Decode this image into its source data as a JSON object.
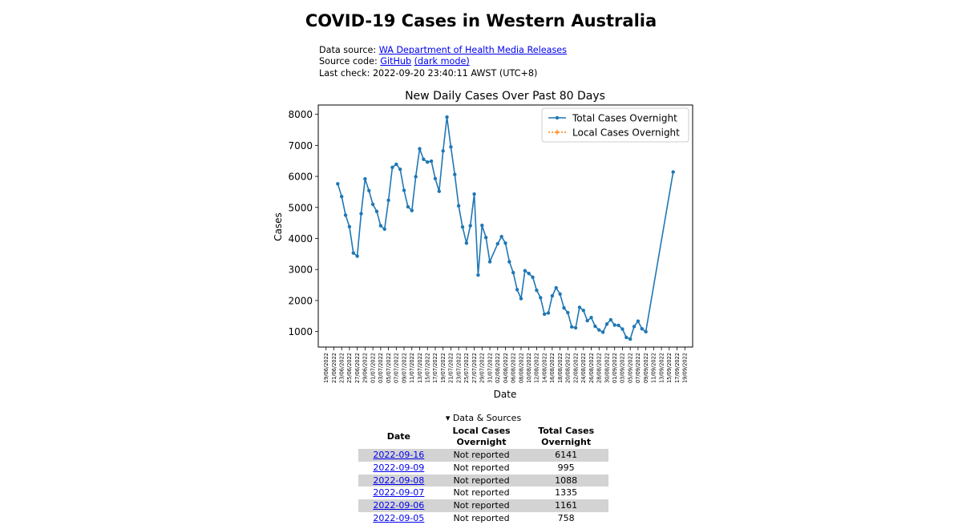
{
  "page": {
    "title": "COVID-19 Cases in Western Australia",
    "data_source_label": "Data source:",
    "data_source_link": "WA Department of Health Media Releases",
    "source_code_label": "Source code:",
    "github_link": "GitHub",
    "dark_mode_link": "(dark mode)",
    "last_check": "Last check: 2022-09-20 23:40:11 AWST (UTC+8)"
  },
  "chart_data": {
    "type": "line",
    "title": "New Daily Cases Over Past 80 Days",
    "xlabel": "Date",
    "ylabel": "Cases",
    "ylim": [
      500,
      8300
    ],
    "yticks": [
      1000,
      2000,
      3000,
      4000,
      5000,
      6000,
      7000,
      8000
    ],
    "xticks": [
      "19/06/2022",
      "21/06/2022",
      "23/06/2022",
      "25/06/2022",
      "27/06/2022",
      "29/06/2022",
      "01/07/2022",
      "03/07/2022",
      "05/07/2022",
      "07/07/2022",
      "09/07/2022",
      "11/07/2022",
      "13/07/2022",
      "15/07/2022",
      "17/07/2022",
      "19/07/2022",
      "21/07/2022",
      "23/07/2022",
      "25/07/2022",
      "27/07/2022",
      "29/07/2022",
      "31/07/2022",
      "02/08/2022",
      "04/08/2022",
      "06/08/2022",
      "08/08/2022",
      "10/08/2022",
      "12/08/2022",
      "14/08/2022",
      "16/08/2022",
      "18/08/2022",
      "20/08/2022",
      "22/08/2022",
      "24/08/2022",
      "26/08/2022",
      "28/08/2022",
      "30/08/2022",
      "01/09/2022",
      "03/09/2022",
      "05/09/2022",
      "07/09/2022",
      "09/09/2022",
      "11/09/2022",
      "13/09/2022",
      "15/09/2022",
      "17/09/2022",
      "19/09/2022"
    ],
    "legend_position": "top-right",
    "grid": false,
    "series": [
      {
        "name": "Total Cases Overnight",
        "color": "#1f77b4",
        "marker": "dot",
        "x": [
          "2022-06-22",
          "2022-06-23",
          "2022-06-24",
          "2022-06-25",
          "2022-06-26",
          "2022-06-27",
          "2022-06-28",
          "2022-06-29",
          "2022-06-30",
          "2022-07-01",
          "2022-07-02",
          "2022-07-03",
          "2022-07-04",
          "2022-07-05",
          "2022-07-06",
          "2022-07-07",
          "2022-07-08",
          "2022-07-09",
          "2022-07-10",
          "2022-07-11",
          "2022-07-12",
          "2022-07-13",
          "2022-07-14",
          "2022-07-15",
          "2022-07-16",
          "2022-07-17",
          "2022-07-18",
          "2022-07-19",
          "2022-07-20",
          "2022-07-21",
          "2022-07-22",
          "2022-07-23",
          "2022-07-24",
          "2022-07-25",
          "2022-07-26",
          "2022-07-27",
          "2022-07-28",
          "2022-07-29",
          "2022-07-30",
          "2022-07-31",
          "2022-08-02",
          "2022-08-03",
          "2022-08-04",
          "2022-08-05",
          "2022-08-06",
          "2022-08-07",
          "2022-08-08",
          "2022-08-09",
          "2022-08-10",
          "2022-08-11",
          "2022-08-12",
          "2022-08-13",
          "2022-08-14",
          "2022-08-15",
          "2022-08-16",
          "2022-08-17",
          "2022-08-18",
          "2022-08-19",
          "2022-08-20",
          "2022-08-21",
          "2022-08-22",
          "2022-08-23",
          "2022-08-24",
          "2022-08-25",
          "2022-08-26",
          "2022-08-27",
          "2022-08-28",
          "2022-08-29",
          "2022-08-30",
          "2022-08-31",
          "2022-09-01",
          "2022-09-02",
          "2022-09-03",
          "2022-09-04",
          "2022-09-05",
          "2022-09-06",
          "2022-09-07",
          "2022-09-08",
          "2022-09-09",
          "2022-09-16"
        ],
        "values": [
          5760,
          5350,
          4750,
          4380,
          3530,
          3430,
          4800,
          5920,
          5540,
          5100,
          4870,
          4410,
          4300,
          5230,
          6290,
          6390,
          6230,
          5550,
          5020,
          4900,
          5990,
          6890,
          6550,
          6460,
          6490,
          5930,
          5520,
          6820,
          7910,
          6950,
          6060,
          5050,
          4370,
          3850,
          4410,
          5430,
          2820,
          4420,
          4030,
          3250,
          3830,
          4060,
          3850,
          3250,
          2900,
          2350,
          2060,
          2960,
          2870,
          2750,
          2330,
          2090,
          1560,
          1600,
          2150,
          2410,
          2210,
          1760,
          1610,
          1150,
          1120,
          1780,
          1680,
          1350,
          1450,
          1170,
          1050,
          980,
          1240,
          1380,
          1210,
          1200,
          1080,
          810,
          758,
          1161,
          1335,
          1088,
          995,
          6141
        ]
      },
      {
        "name": "Local Cases Overnight",
        "color": "#ff7f0e",
        "marker": "plus",
        "x": [],
        "values": []
      }
    ]
  },
  "details": {
    "summary": "▾ Data & Sources",
    "headers": {
      "date": "Date",
      "local": "Local Cases Overnight",
      "total": "Total Cases Overnight"
    },
    "rows": [
      {
        "date": "2022-09-16",
        "local": "Not reported",
        "total": "6141"
      },
      {
        "date": "2022-09-09",
        "local": "Not reported",
        "total": "995"
      },
      {
        "date": "2022-09-08",
        "local": "Not reported",
        "total": "1088"
      },
      {
        "date": "2022-09-07",
        "local": "Not reported",
        "total": "1335"
      },
      {
        "date": "2022-09-06",
        "local": "Not reported",
        "total": "1161"
      },
      {
        "date": "2022-09-05",
        "local": "Not reported",
        "total": "758"
      }
    ]
  }
}
